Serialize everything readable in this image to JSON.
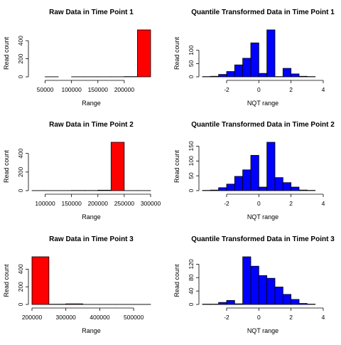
{
  "colors": {
    "raw": "#ff0000",
    "nqt": "#0000ff",
    "axis": "#000000"
  },
  "chart_data": [
    {
      "type": "bar",
      "title": "Raw Data in Time Point 1",
      "xlabel": "Range",
      "ylabel": "Read count",
      "bins": [
        [
          25000,
          50000
        ],
        [
          50000,
          75000
        ],
        [
          75000,
          100000
        ],
        [
          100000,
          125000
        ],
        [
          125000,
          150000
        ],
        [
          150000,
          175000
        ],
        [
          175000,
          200000
        ],
        [
          200000,
          225000
        ],
        [
          225000,
          250000
        ]
      ],
      "values": [
        0,
        1,
        0,
        1,
        1,
        1,
        1,
        3,
        520
      ],
      "xlim": [
        25000,
        250000
      ],
      "ylim": [
        0,
        520
      ],
      "xticks": [
        50000,
        100000,
        150000,
        200000
      ],
      "xtick_labels": [
        "50000",
        "100000",
        "150000",
        "200000"
      ],
      "yticks": [
        0,
        200,
        400
      ],
      "ytick_labels": [
        "0",
        "200",
        "400"
      ],
      "color": "#ff0000"
    },
    {
      "type": "bar",
      "title": "Quantile Transformed  Data in Time Point 1",
      "xlabel": "NQT range",
      "ylabel": "Read count",
      "bins": [
        [
          -3.5,
          -3
        ],
        [
          -3,
          -2.5
        ],
        [
          -2.5,
          -2
        ],
        [
          -2,
          -1.5
        ],
        [
          -1.5,
          -1
        ],
        [
          -1,
          -0.5
        ],
        [
          -0.5,
          0
        ],
        [
          0,
          0.5
        ],
        [
          0.5,
          1
        ],
        [
          1,
          1.5
        ],
        [
          1.5,
          2
        ],
        [
          2,
          2.5
        ],
        [
          2.5,
          3
        ],
        [
          3,
          3.5
        ]
      ],
      "values": [
        1,
        2,
        9,
        20,
        45,
        70,
        128,
        13,
        177,
        1,
        32,
        11,
        2,
        1
      ],
      "xlim": [
        -3.5,
        4
      ],
      "ylim": [
        0,
        177
      ],
      "xticks": [
        -2,
        0,
        2,
        4
      ],
      "xtick_labels": [
        "-2",
        "0",
        "2",
        "4"
      ],
      "yticks": [
        0,
        50,
        100
      ],
      "ytick_labels": [
        "0",
        "50",
        "100"
      ],
      "color": "#0000ff"
    },
    {
      "type": "bar",
      "title": "Raw Data in Time Point 2",
      "xlabel": "Range",
      "ylabel": "Read count",
      "bins": [
        [
          75000,
          100000
        ],
        [
          100000,
          125000
        ],
        [
          125000,
          150000
        ],
        [
          150000,
          175000
        ],
        [
          175000,
          200000
        ],
        [
          200000,
          225000
        ],
        [
          225000,
          250000
        ],
        [
          250000,
          275000
        ],
        [
          275000,
          300000
        ]
      ],
      "values": [
        1,
        1,
        1,
        2,
        2,
        5,
        520,
        1,
        1
      ],
      "xlim": [
        75000,
        300000
      ],
      "ylim": [
        0,
        520
      ],
      "xticks": [
        100000,
        150000,
        200000,
        250000,
        300000
      ],
      "xtick_labels": [
        "100000",
        "150000",
        "200000",
        "250000",
        "300000"
      ],
      "yticks": [
        0,
        200,
        400
      ],
      "ytick_labels": [
        "0",
        "200",
        "400"
      ],
      "color": "#ff0000"
    },
    {
      "type": "bar",
      "title": "Quantile Transformed  Data in Time Point 2",
      "xlabel": "NQT range",
      "ylabel": "Read count",
      "bins": [
        [
          -3.5,
          -3
        ],
        [
          -3,
          -2.5
        ],
        [
          -2.5,
          -2
        ],
        [
          -2,
          -1.5
        ],
        [
          -1.5,
          -1
        ],
        [
          -1,
          -0.5
        ],
        [
          -0.5,
          0
        ],
        [
          0,
          0.5
        ],
        [
          0.5,
          1
        ],
        [
          1,
          1.5
        ],
        [
          1.5,
          2
        ],
        [
          2,
          2.5
        ],
        [
          2.5,
          3
        ],
        [
          3,
          3.5
        ]
      ],
      "values": [
        1,
        2,
        10,
        22,
        48,
        70,
        119,
        12,
        163,
        44,
        27,
        12,
        2,
        1
      ],
      "xlim": [
        -3.5,
        4
      ],
      "ylim": [
        0,
        163
      ],
      "xticks": [
        -2,
        0,
        2,
        4
      ],
      "xtick_labels": [
        "-2",
        "0",
        "2",
        "4"
      ],
      "yticks": [
        0,
        50,
        100,
        150
      ],
      "ytick_labels": [
        "0",
        "50",
        "100",
        "150"
      ],
      "color": "#0000ff"
    },
    {
      "type": "bar",
      "title": "Raw Data in Time Point 3",
      "xlabel": "Range",
      "ylabel": "Read count",
      "bins": [
        [
          200000,
          250000
        ],
        [
          250000,
          300000
        ],
        [
          300000,
          350000
        ],
        [
          350000,
          400000
        ],
        [
          400000,
          450000
        ],
        [
          450000,
          500000
        ],
        [
          500000,
          550000
        ]
      ],
      "values": [
        540,
        3,
        7,
        1,
        1,
        1,
        1
      ],
      "xlim": [
        200000,
        550000
      ],
      "ylim": [
        0,
        540
      ],
      "xticks": [
        200000,
        300000,
        400000,
        500000
      ],
      "xtick_labels": [
        "200000",
        "300000",
        "400000",
        "500000"
      ],
      "yticks": [
        0,
        200,
        400
      ],
      "ytick_labels": [
        "0",
        "200",
        "400"
      ],
      "color": "#ff0000"
    },
    {
      "type": "bar",
      "title": "Quantile Transformed  Data in Time Point 3",
      "xlabel": "NQT range",
      "ylabel": "Read count",
      "bins": [
        [
          -3.5,
          -3
        ],
        [
          -3,
          -2.5
        ],
        [
          -2.5,
          -2
        ],
        [
          -2,
          -1.5
        ],
        [
          -1.5,
          -1
        ],
        [
          -1,
          -0.5
        ],
        [
          -0.5,
          0
        ],
        [
          0,
          0.5
        ],
        [
          0.5,
          1
        ],
        [
          1,
          1.5
        ],
        [
          1.5,
          2
        ],
        [
          2,
          2.5
        ],
        [
          2.5,
          3
        ],
        [
          3,
          3.5
        ]
      ],
      "values": [
        1,
        1,
        6,
        12,
        2,
        142,
        114,
        86,
        78,
        52,
        30,
        15,
        3,
        1
      ],
      "xlim": [
        -3.5,
        4
      ],
      "ylim": [
        0,
        142
      ],
      "xticks": [
        -2,
        0,
        2,
        4
      ],
      "xtick_labels": [
        "-2",
        "0",
        "2",
        "4"
      ],
      "yticks": [
        0,
        40,
        80,
        120
      ],
      "ytick_labels": [
        "0",
        "40",
        "80",
        "120"
      ],
      "color": "#0000ff"
    }
  ]
}
